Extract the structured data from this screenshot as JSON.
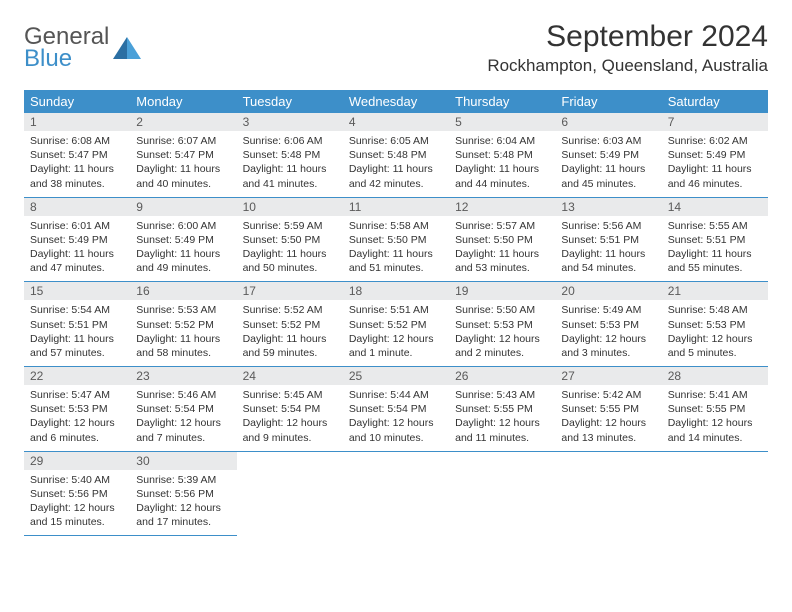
{
  "logo": {
    "general": "General",
    "blue": "Blue"
  },
  "title": "September 2024",
  "location": "Rockhampton, Queensland, Australia",
  "colors": {
    "header_bg": "#3d8fc9",
    "header_text": "#ffffff",
    "daynum_bg": "#e9eaeb",
    "border": "#3d8fc9",
    "body_text": "#333333"
  },
  "weekdays": [
    "Sunday",
    "Monday",
    "Tuesday",
    "Wednesday",
    "Thursday",
    "Friday",
    "Saturday"
  ],
  "weeks": [
    [
      {
        "n": "1",
        "sr": "Sunrise: 6:08 AM",
        "ss": "Sunset: 5:47 PM",
        "dl": "Daylight: 11 hours and 38 minutes."
      },
      {
        "n": "2",
        "sr": "Sunrise: 6:07 AM",
        "ss": "Sunset: 5:47 PM",
        "dl": "Daylight: 11 hours and 40 minutes."
      },
      {
        "n": "3",
        "sr": "Sunrise: 6:06 AM",
        "ss": "Sunset: 5:48 PM",
        "dl": "Daylight: 11 hours and 41 minutes."
      },
      {
        "n": "4",
        "sr": "Sunrise: 6:05 AM",
        "ss": "Sunset: 5:48 PM",
        "dl": "Daylight: 11 hours and 42 minutes."
      },
      {
        "n": "5",
        "sr": "Sunrise: 6:04 AM",
        "ss": "Sunset: 5:48 PM",
        "dl": "Daylight: 11 hours and 44 minutes."
      },
      {
        "n": "6",
        "sr": "Sunrise: 6:03 AM",
        "ss": "Sunset: 5:49 PM",
        "dl": "Daylight: 11 hours and 45 minutes."
      },
      {
        "n": "7",
        "sr": "Sunrise: 6:02 AM",
        "ss": "Sunset: 5:49 PM",
        "dl": "Daylight: 11 hours and 46 minutes."
      }
    ],
    [
      {
        "n": "8",
        "sr": "Sunrise: 6:01 AM",
        "ss": "Sunset: 5:49 PM",
        "dl": "Daylight: 11 hours and 47 minutes."
      },
      {
        "n": "9",
        "sr": "Sunrise: 6:00 AM",
        "ss": "Sunset: 5:49 PM",
        "dl": "Daylight: 11 hours and 49 minutes."
      },
      {
        "n": "10",
        "sr": "Sunrise: 5:59 AM",
        "ss": "Sunset: 5:50 PM",
        "dl": "Daylight: 11 hours and 50 minutes."
      },
      {
        "n": "11",
        "sr": "Sunrise: 5:58 AM",
        "ss": "Sunset: 5:50 PM",
        "dl": "Daylight: 11 hours and 51 minutes."
      },
      {
        "n": "12",
        "sr": "Sunrise: 5:57 AM",
        "ss": "Sunset: 5:50 PM",
        "dl": "Daylight: 11 hours and 53 minutes."
      },
      {
        "n": "13",
        "sr": "Sunrise: 5:56 AM",
        "ss": "Sunset: 5:51 PM",
        "dl": "Daylight: 11 hours and 54 minutes."
      },
      {
        "n": "14",
        "sr": "Sunrise: 5:55 AM",
        "ss": "Sunset: 5:51 PM",
        "dl": "Daylight: 11 hours and 55 minutes."
      }
    ],
    [
      {
        "n": "15",
        "sr": "Sunrise: 5:54 AM",
        "ss": "Sunset: 5:51 PM",
        "dl": "Daylight: 11 hours and 57 minutes."
      },
      {
        "n": "16",
        "sr": "Sunrise: 5:53 AM",
        "ss": "Sunset: 5:52 PM",
        "dl": "Daylight: 11 hours and 58 minutes."
      },
      {
        "n": "17",
        "sr": "Sunrise: 5:52 AM",
        "ss": "Sunset: 5:52 PM",
        "dl": "Daylight: 11 hours and 59 minutes."
      },
      {
        "n": "18",
        "sr": "Sunrise: 5:51 AM",
        "ss": "Sunset: 5:52 PM",
        "dl": "Daylight: 12 hours and 1 minute."
      },
      {
        "n": "19",
        "sr": "Sunrise: 5:50 AM",
        "ss": "Sunset: 5:53 PM",
        "dl": "Daylight: 12 hours and 2 minutes."
      },
      {
        "n": "20",
        "sr": "Sunrise: 5:49 AM",
        "ss": "Sunset: 5:53 PM",
        "dl": "Daylight: 12 hours and 3 minutes."
      },
      {
        "n": "21",
        "sr": "Sunrise: 5:48 AM",
        "ss": "Sunset: 5:53 PM",
        "dl": "Daylight: 12 hours and 5 minutes."
      }
    ],
    [
      {
        "n": "22",
        "sr": "Sunrise: 5:47 AM",
        "ss": "Sunset: 5:53 PM",
        "dl": "Daylight: 12 hours and 6 minutes."
      },
      {
        "n": "23",
        "sr": "Sunrise: 5:46 AM",
        "ss": "Sunset: 5:54 PM",
        "dl": "Daylight: 12 hours and 7 minutes."
      },
      {
        "n": "24",
        "sr": "Sunrise: 5:45 AM",
        "ss": "Sunset: 5:54 PM",
        "dl": "Daylight: 12 hours and 9 minutes."
      },
      {
        "n": "25",
        "sr": "Sunrise: 5:44 AM",
        "ss": "Sunset: 5:54 PM",
        "dl": "Daylight: 12 hours and 10 minutes."
      },
      {
        "n": "26",
        "sr": "Sunrise: 5:43 AM",
        "ss": "Sunset: 5:55 PM",
        "dl": "Daylight: 12 hours and 11 minutes."
      },
      {
        "n": "27",
        "sr": "Sunrise: 5:42 AM",
        "ss": "Sunset: 5:55 PM",
        "dl": "Daylight: 12 hours and 13 minutes."
      },
      {
        "n": "28",
        "sr": "Sunrise: 5:41 AM",
        "ss": "Sunset: 5:55 PM",
        "dl": "Daylight: 12 hours and 14 minutes."
      }
    ],
    [
      {
        "n": "29",
        "sr": "Sunrise: 5:40 AM",
        "ss": "Sunset: 5:56 PM",
        "dl": "Daylight: 12 hours and 15 minutes."
      },
      {
        "n": "30",
        "sr": "Sunrise: 5:39 AM",
        "ss": "Sunset: 5:56 PM",
        "dl": "Daylight: 12 hours and 17 minutes."
      },
      null,
      null,
      null,
      null,
      null
    ]
  ]
}
